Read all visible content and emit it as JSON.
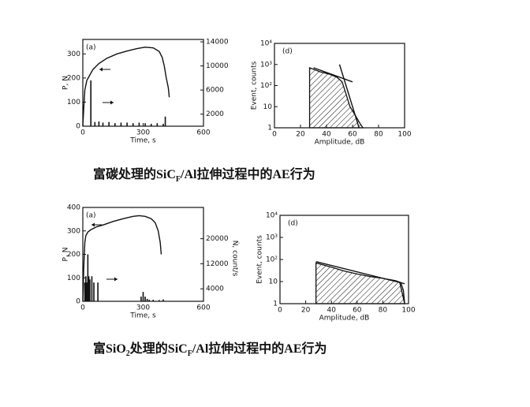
{
  "chart_data": [
    {
      "type": "line",
      "label": "(a)",
      "xlabel": "Time, s",
      "ylabel": "P, N",
      "xlim": [
        0,
        600
      ],
      "xticks": [
        0,
        300,
        600
      ],
      "ylim": [
        0,
        360
      ],
      "yticks": [
        0,
        100,
        200,
        300
      ],
      "y2lim": [
        0,
        14400
      ],
      "y2ticks": [
        2000,
        6000,
        10000,
        14000
      ],
      "log": false,
      "series": [
        {
          "kind": "line",
          "color": "#111111",
          "x": [
            0,
            5,
            10,
            20,
            30,
            50,
            80,
            120,
            170,
            220,
            270,
            310,
            350,
            380,
            395,
            405,
            415,
            425,
            430
          ],
          "values": [
            0,
            80,
            150,
            190,
            205,
            235,
            260,
            282,
            300,
            312,
            322,
            328,
            325,
            310,
            285,
            250,
            200,
            160,
            120
          ]
        },
        {
          "kind": "bar",
          "axis": "y2",
          "color": "#111111",
          "x": [
            40,
            60,
            80,
            100,
            130,
            160,
            190,
            220,
            250,
            280,
            310,
            340,
            370,
            400,
            410
          ],
          "values": [
            7600,
            700,
            800,
            600,
            700,
            500,
            600,
            600,
            500,
            600,
            500,
            400,
            500,
            400,
            1600
          ]
        }
      ]
    },
    {
      "type": "area",
      "label": "(d)",
      "xlabel": "Amplitude, dB",
      "ylabel": "Event, counts",
      "xlim": [
        0,
        100
      ],
      "xticks": [
        0,
        20,
        40,
        60,
        80,
        100
      ],
      "ylim": [
        1,
        10000
      ],
      "log": true,
      "yticks": [
        1,
        10,
        {
          "value": 100,
          "label": "10²"
        },
        {
          "value": 1000,
          "label": "10³"
        },
        {
          "value": 10000,
          "label": "10⁴"
        }
      ],
      "series": [
        {
          "kind": "area",
          "color": "#111111",
          "x": [
            27,
            35,
            42,
            48,
            52,
            55,
            58,
            62,
            66,
            68
          ],
          "values": [
            700,
            450,
            350,
            250,
            150,
            40,
            10,
            4,
            1.5,
            1
          ]
        },
        {
          "kind": "line",
          "color": "#111111",
          "x": [
            30,
            60
          ],
          "values": [
            700,
            150
          ]
        },
        {
          "kind": "line",
          "color": "#111111",
          "x": [
            50,
            65
          ],
          "values": [
            1000,
            1
          ]
        }
      ]
    },
    {
      "type": "line",
      "label": "(a)",
      "xlabel": "Time, s",
      "ylabel": "P, N",
      "y2label": "Ṅ, count/s",
      "xlim": [
        0,
        600
      ],
      "xticks": [
        0,
        300,
        600
      ],
      "ylim": [
        0,
        400
      ],
      "yticks": [
        0,
        100,
        200,
        300,
        400
      ],
      "y2lim": [
        0,
        30000
      ],
      "y2ticks": [
        4000,
        12000,
        20000
      ],
      "log": false,
      "series": [
        {
          "kind": "line",
          "color": "#111111",
          "x": [
            0,
            5,
            10,
            15,
            25,
            40,
            70,
            100,
            150,
            200,
            250,
            280,
            310,
            340,
            360,
            375,
            385,
            390
          ],
          "values": [
            0,
            150,
            250,
            280,
            295,
            305,
            318,
            325,
            340,
            352,
            362,
            365,
            362,
            352,
            335,
            300,
            250,
            200
          ]
        },
        {
          "kind": "bar",
          "axis": "y2",
          "color": "#111111",
          "x": [
            10,
            15,
            20,
            25,
            30,
            35,
            45,
            55,
            75,
            290,
            300,
            310,
            320,
            330,
            350,
            380,
            400
          ],
          "values": [
            6000,
            8000,
            6000,
            15000,
            8000,
            7000,
            8000,
            6000,
            6000,
            1500,
            3000,
            1500,
            800,
            500,
            500,
            400,
            600
          ]
        }
      ]
    },
    {
      "type": "area",
      "label": "(d)",
      "xlabel": "Amplitude, dB",
      "ylabel": "Event, counts",
      "xlim": [
        0,
        100
      ],
      "xticks": [
        0,
        20,
        40,
        60,
        80,
        100
      ],
      "ylim": [
        1,
        10000
      ],
      "log": true,
      "yticks": [
        1,
        10,
        {
          "value": 100,
          "label": "10²"
        },
        {
          "value": 1000,
          "label": "10³"
        },
        {
          "value": 10000,
          "label": "10⁴"
        }
      ],
      "series": [
        {
          "kind": "area",
          "color": "#111111",
          "x": [
            28,
            40,
            50,
            60,
            70,
            80,
            90,
            94,
            96,
            97
          ],
          "values": [
            70,
            45,
            30,
            22,
            17,
            14,
            11,
            9,
            4,
            1
          ]
        },
        {
          "kind": "line",
          "color": "#111111",
          "x": [
            28,
            97
          ],
          "values": [
            80,
            8
          ]
        },
        {
          "kind": "line",
          "color": "#111111",
          "x": [
            93,
            97
          ],
          "values": [
            10,
            1
          ]
        }
      ]
    }
  ],
  "captions": [
    [
      "富碳处理的SiC",
      "F",
      "/Al拉伸过程中的AE行为"
    ],
    [
      "富SiO",
      "2",
      "处理的SiC",
      "F",
      "/Al拉伸过程中的AE行为"
    ]
  ]
}
